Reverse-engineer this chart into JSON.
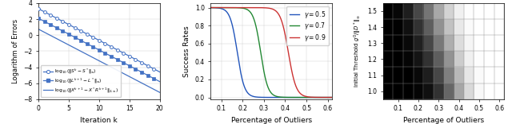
{
  "fig1": {
    "xlabel": "Iteration k",
    "ylabel": "Logarithm of Errors",
    "xlim": [
      0,
      20
    ],
    "ylim": [
      -8,
      4
    ],
    "yticks": [
      -8,
      -6,
      -4,
      -2,
      0,
      2,
      4
    ],
    "xticks": [
      0,
      5,
      10,
      15,
      20
    ],
    "line_color": "#4472c4",
    "y1_start": 3.3,
    "y1_slope": -0.395,
    "y2_start": 2.1,
    "y2_slope": -0.395,
    "y3_start": 0.75,
    "y3_slope": -0.395
  },
  "fig2": {
    "xlabel": "Percentage of Outliers",
    "ylabel": "Success Rates",
    "xlim": [
      0.05,
      0.62
    ],
    "ylim": [
      -0.02,
      1.05
    ],
    "xticks": [
      0.1,
      0.2,
      0.3,
      0.4,
      0.5,
      0.6
    ],
    "yticks": [
      0,
      0.2,
      0.4,
      0.6,
      0.8,
      1.0
    ],
    "colors": [
      "#2255bb",
      "#228833",
      "#cc3333"
    ],
    "gammas": [
      "0.5",
      "0.7",
      "0.9"
    ],
    "transitions": [
      0.175,
      0.285,
      0.415
    ],
    "steepness": [
      60,
      60,
      55
    ]
  },
  "fig3": {
    "xlabel": "Percentage of Outliers",
    "ylabel": "Initial Threshold $g^0/\\|D^*\\|_\\infty$",
    "xticks": [
      0.1,
      0.2,
      0.3,
      0.4,
      0.5,
      0.6
    ],
    "yticks": [
      1.0,
      1.1,
      1.2,
      1.3,
      1.4,
      1.5
    ],
    "data": [
      [
        1.0,
        1.0,
        1.0,
        0.98,
        0.93,
        0.8,
        0.6,
        0.35,
        0.15,
        0.03,
        0.0,
        0.0
      ],
      [
        1.0,
        1.0,
        1.0,
        0.96,
        0.88,
        0.72,
        0.5,
        0.28,
        0.1,
        0.02,
        0.0,
        0.0
      ],
      [
        1.0,
        1.0,
        0.98,
        0.92,
        0.8,
        0.63,
        0.42,
        0.2,
        0.06,
        0.01,
        0.0,
        0.0
      ],
      [
        1.0,
        1.0,
        0.96,
        0.87,
        0.72,
        0.53,
        0.32,
        0.14,
        0.04,
        0.0,
        0.0,
        0.0
      ],
      [
        1.0,
        0.99,
        0.93,
        0.8,
        0.63,
        0.43,
        0.24,
        0.09,
        0.02,
        0.0,
        0.0,
        0.0
      ],
      [
        1.0,
        0.97,
        0.88,
        0.72,
        0.54,
        0.34,
        0.17,
        0.06,
        0.01,
        0.0,
        0.0,
        0.0
      ]
    ],
    "x_centers": [
      0.05,
      0.1,
      0.15,
      0.2,
      0.25,
      0.3,
      0.35,
      0.4,
      0.45,
      0.5,
      0.55,
      0.6
    ],
    "y_centers": [
      1.0,
      1.1,
      1.2,
      1.3,
      1.4,
      1.5
    ]
  }
}
